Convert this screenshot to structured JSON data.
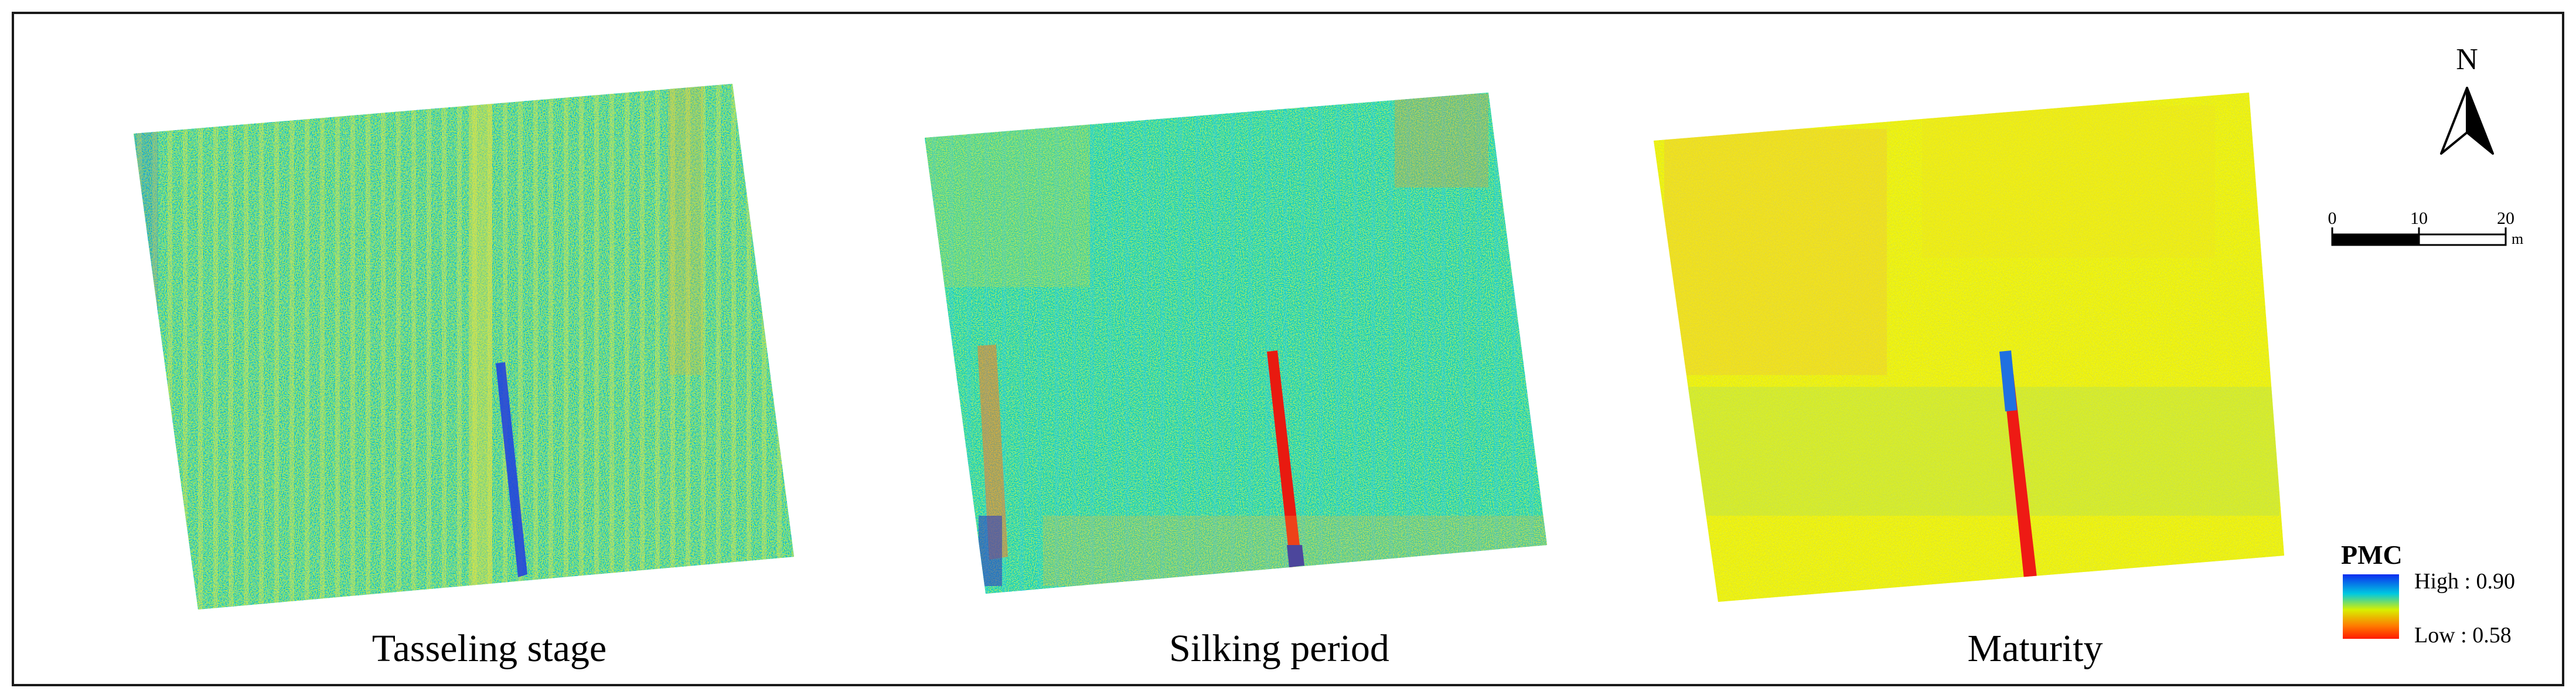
{
  "panels": [
    {
      "title": "Tasseling stage",
      "palette": "tasseling"
    },
    {
      "title": "Silking period",
      "palette": "silking"
    },
    {
      "title": "Maturity",
      "palette": "maturity"
    }
  ],
  "north_arrow": {
    "label": "N"
  },
  "scale_bar": {
    "ticks": [
      "0",
      "10",
      "20"
    ],
    "unit": "m"
  },
  "legend": {
    "title": "PMC",
    "high_label": "High : 0.90",
    "low_label": "Low : 0.58",
    "colors": [
      "#0b2cf0",
      "#00c8e0",
      "#d8f000",
      "#ff7a00",
      "#ff1a00"
    ]
  }
}
